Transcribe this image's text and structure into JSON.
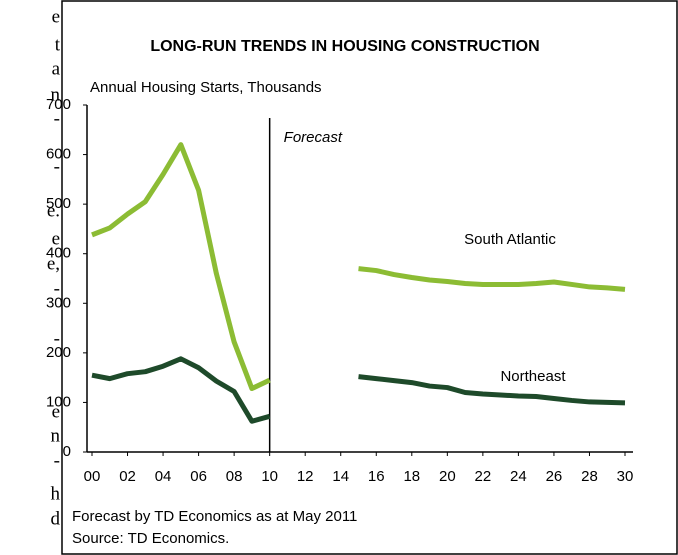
{
  "margin_text": [
    "e",
    "t",
    "a",
    "n",
    "-",
    "-",
    "e.",
    "e",
    "e,",
    "-",
    "-",
    "e",
    "n",
    "-",
    "h",
    "d"
  ],
  "chart_data": {
    "type": "line",
    "title": "LONG-RUN TRENDS IN HOUSING CONSTRUCTION",
    "y_label": "Annual Housing Starts, Thousands",
    "annotations": [
      "Forecast"
    ],
    "forecast_start": 2010,
    "footnotes": [
      "Forecast by TD Economics as at May 2011",
      "Source: TD Economics."
    ],
    "x": [
      2000,
      2001,
      2002,
      2003,
      2004,
      2005,
      2006,
      2007,
      2008,
      2009,
      2010,
      2011,
      2012,
      2013,
      2014,
      2015,
      2016,
      2017,
      2018,
      2019,
      2020,
      2021,
      2022,
      2023,
      2024,
      2025,
      2026,
      2027,
      2028,
      2029,
      2030
    ],
    "series": [
      {
        "name": "South Atlantic",
        "color": "#8cbc34",
        "values": [
          438,
          452,
          480,
          505,
          560,
          620,
          528,
          360,
          222,
          128,
          145,
          null,
          null,
          null,
          null,
          370,
          366,
          358,
          352,
          347,
          344,
          340,
          338,
          338,
          338,
          340,
          343,
          338,
          333,
          331,
          328
        ],
        "bridge": [
          null,
          null,
          null,
          null,
          null,
          null,
          null,
          null,
          null,
          null,
          145,
          null,
          null,
          null,
          370,
          null,
          null,
          null,
          null,
          null,
          null,
          null,
          null,
          null,
          null,
          null,
          null,
          null,
          null,
          null,
          null
        ]
      },
      {
        "name": "Northeast",
        "color": "#1e4a2a",
        "values": [
          155,
          148,
          158,
          162,
          173,
          188,
          170,
          143,
          122,
          62,
          72,
          null,
          null,
          null,
          null,
          152,
          148,
          144,
          140,
          133,
          130,
          120,
          117,
          115,
          113,
          112,
          108,
          104,
          101,
          100,
          99
        ],
        "bridge": [
          null,
          null,
          null,
          null,
          null,
          null,
          null,
          null,
          null,
          null,
          72,
          null,
          null,
          null,
          150,
          null,
          null,
          null,
          null,
          null,
          null,
          null,
          null,
          null,
          null,
          null,
          null,
          null,
          null,
          null,
          null
        ]
      }
    ],
    "xlim": [
      2000,
      2030
    ],
    "xticks": [
      {
        "value": 2000,
        "label": "00"
      },
      {
        "value": 2002,
        "label": "02"
      },
      {
        "value": 2004,
        "label": "04"
      },
      {
        "value": 2006,
        "label": "06"
      },
      {
        "value": 2008,
        "label": "08"
      },
      {
        "value": 2010,
        "label": "10"
      },
      {
        "value": 2012,
        "label": "12"
      },
      {
        "value": 2014,
        "label": "14"
      },
      {
        "value": 2016,
        "label": "16"
      },
      {
        "value": 2018,
        "label": "18"
      },
      {
        "value": 2020,
        "label": "20"
      },
      {
        "value": 2022,
        "label": "22"
      },
      {
        "value": 2024,
        "label": "24"
      },
      {
        "value": 2026,
        "label": "26"
      },
      {
        "value": 2028,
        "label": "28"
      },
      {
        "value": 2030,
        "label": "30"
      }
    ],
    "ylim": [
      0,
      700
    ],
    "yticks": [
      0,
      100,
      200,
      300,
      400,
      500,
      600,
      700
    ],
    "grid": false
  }
}
